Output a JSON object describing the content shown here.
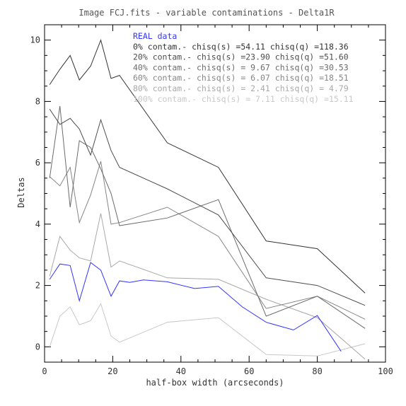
{
  "chart_data": {
    "type": "line",
    "title": "Image FCJ.fits - variable contaminations - Delta1R",
    "xlabel": "half-box width (arcseconds)",
    "ylabel": "Deltas",
    "xlim": [
      0,
      100
    ],
    "ylim": [
      -0.5,
      10.5
    ],
    "x_ticks": [
      0,
      20,
      40,
      60,
      80,
      100
    ],
    "y_ticks": [
      0,
      2,
      4,
      6,
      8,
      10
    ],
    "x_tick_labels": [
      "0",
      "20",
      "40",
      "60",
      "80",
      "100"
    ],
    "y_tick_labels": [
      "0",
      "2",
      "4",
      "6",
      "8",
      "10"
    ],
    "legend_position": "top-right",
    "grid": false,
    "series": [
      {
        "name": "REAL data",
        "color": "#3333ff",
        "x": [
          1.5,
          4.5,
          7.5,
          10.2,
          13.5,
          16.5,
          19.5,
          22,
          25,
          29,
          36,
          44,
          51,
          58,
          65,
          73,
          80,
          87
        ],
        "y": [
          2.2,
          2.7,
          2.65,
          1.5,
          2.75,
          2.5,
          1.65,
          2.15,
          2.1,
          2.18,
          2.12,
          1.9,
          1.97,
          1.3,
          0.8,
          0.55,
          1.02,
          -0.15
        ]
      },
      {
        "name": "0% contam.- chisq(s) =54.11 chisq(q) =118.36",
        "color": "#333333",
        "x": [
          1.5,
          4.5,
          7.5,
          10.2,
          13.5,
          16.5,
          19.5,
          22,
          36,
          51,
          65,
          80,
          94
        ],
        "y": [
          8.55,
          9.05,
          9.5,
          8.7,
          9.15,
          10.0,
          8.75,
          8.85,
          6.65,
          5.85,
          3.45,
          3.2,
          1.75
        ]
      },
      {
        "name": "20% contam.- chisq(s) =23.90 chisq(q) =51.60",
        "color": "#4d4d4d",
        "x": [
          1.5,
          4.5,
          7.5,
          10.2,
          13.5,
          16.5,
          19.5,
          22,
          36,
          51,
          65,
          80,
          94
        ],
        "y": [
          7.75,
          7.25,
          7.45,
          7.1,
          6.25,
          7.4,
          6.4,
          5.85,
          5.15,
          4.3,
          2.25,
          2.0,
          1.35
        ]
      },
      {
        "name": "40% contam.- chisq(s) = 9.67 chisq(q) =30.53",
        "color": "#6b6b6b",
        "x": [
          1.5,
          4.5,
          7.5,
          10.2,
          13.5,
          16.5,
          19.5,
          22,
          36,
          51,
          65,
          80,
          94
        ],
        "y": [
          5.5,
          7.85,
          4.55,
          6.72,
          6.5,
          5.8,
          5.0,
          3.95,
          4.2,
          4.8,
          1.0,
          1.65,
          0.6
        ]
      },
      {
        "name": "60% contam.- chisq(s) = 6.07 chisq(q) =18.51",
        "color": "#858585",
        "x": [
          1.5,
          4.5,
          7.5,
          10.2,
          13.5,
          16.5,
          19.5,
          22,
          36,
          51,
          65,
          80,
          94
        ],
        "y": [
          5.55,
          5.25,
          5.85,
          4.05,
          4.95,
          6.05,
          4.0,
          4.05,
          4.55,
          3.6,
          1.25,
          1.65,
          0.9
        ]
      },
      {
        "name": "80% contam.- chisq(s) = 2.41 chisq(q) = 4.79",
        "color": "#a8a8a8",
        "x": [
          1.5,
          4.5,
          7.5,
          10.2,
          13.5,
          16.5,
          19.5,
          22,
          36,
          51,
          65,
          80,
          94
        ],
        "y": [
          2.3,
          3.6,
          3.15,
          2.9,
          2.8,
          4.35,
          2.6,
          2.8,
          2.25,
          2.2,
          1.55,
          0.95,
          -0.4
        ]
      },
      {
        "name": "100% contam.- chisq(s) = 7.11 chisq(q) =15.11",
        "color": "#c8c8c8",
        "x": [
          1.5,
          4.5,
          7.5,
          10.2,
          13.5,
          16.5,
          19.5,
          22,
          36,
          51,
          65,
          80,
          94
        ],
        "y": [
          0.0,
          1.0,
          1.3,
          0.72,
          0.85,
          1.4,
          0.35,
          0.15,
          0.8,
          0.95,
          -0.25,
          -0.3,
          0.1
        ]
      }
    ]
  }
}
